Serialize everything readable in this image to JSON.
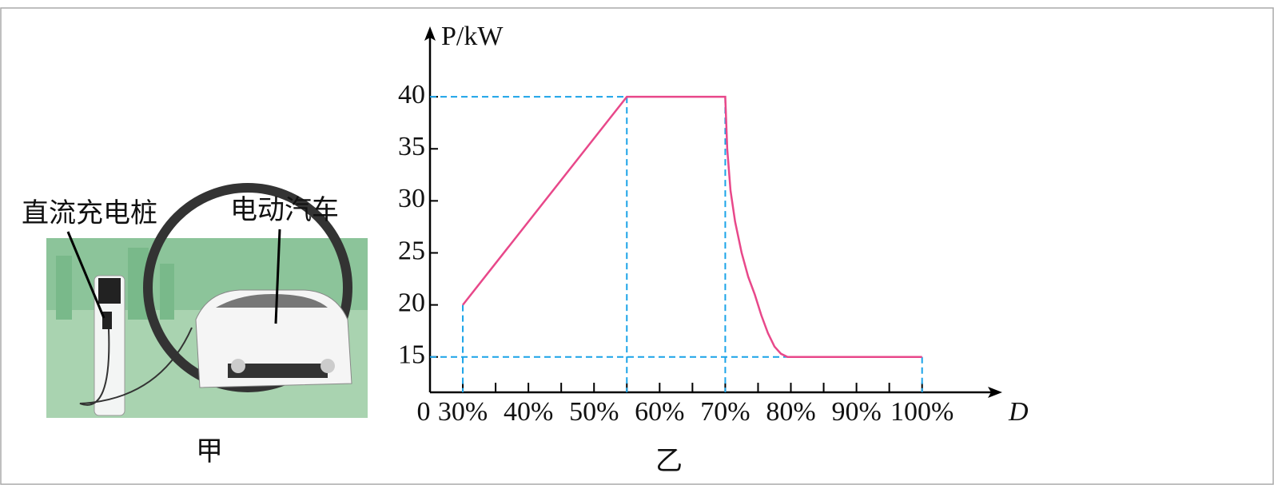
{
  "figure_a": {
    "labels": [
      "直流充电桩",
      "电动汽车"
    ],
    "caption": "甲"
  },
  "chart_data": {
    "type": "line",
    "caption": "乙",
    "ylabel": "P/kW",
    "xlabel": "D",
    "origin_label": "0",
    "xlim": [
      25,
      111
    ],
    "ylim": [
      11.6,
      46
    ],
    "xticks": [
      {
        "value": 30,
        "label": "30%"
      },
      {
        "value": 40,
        "label": "40%"
      },
      {
        "value": 50,
        "label": "50%"
      },
      {
        "value": 60,
        "label": "60%"
      },
      {
        "value": 70,
        "label": "70%"
      },
      {
        "value": 80,
        "label": "80%"
      },
      {
        "value": 90,
        "label": "90%"
      },
      {
        "value": 100,
        "label": "100%"
      }
    ],
    "x_minor_ticks": [
      35,
      45,
      55,
      65,
      75,
      85,
      95
    ],
    "yticks": [
      15,
      20,
      25,
      30,
      35,
      40
    ],
    "series": [
      {
        "color": "#e8488a",
        "x": [
          30,
          55,
          70,
          70.3,
          70.8,
          71.5,
          72.5,
          73.5,
          74.5,
          75.5,
          76.5,
          77.5,
          78.5,
          79.5,
          100
        ],
        "values": [
          20,
          40,
          40,
          35,
          31,
          28,
          25,
          22.7,
          21,
          19,
          17.3,
          16,
          15.3,
          15,
          15
        ]
      }
    ],
    "guide_color": "#1aa3e8"
  }
}
